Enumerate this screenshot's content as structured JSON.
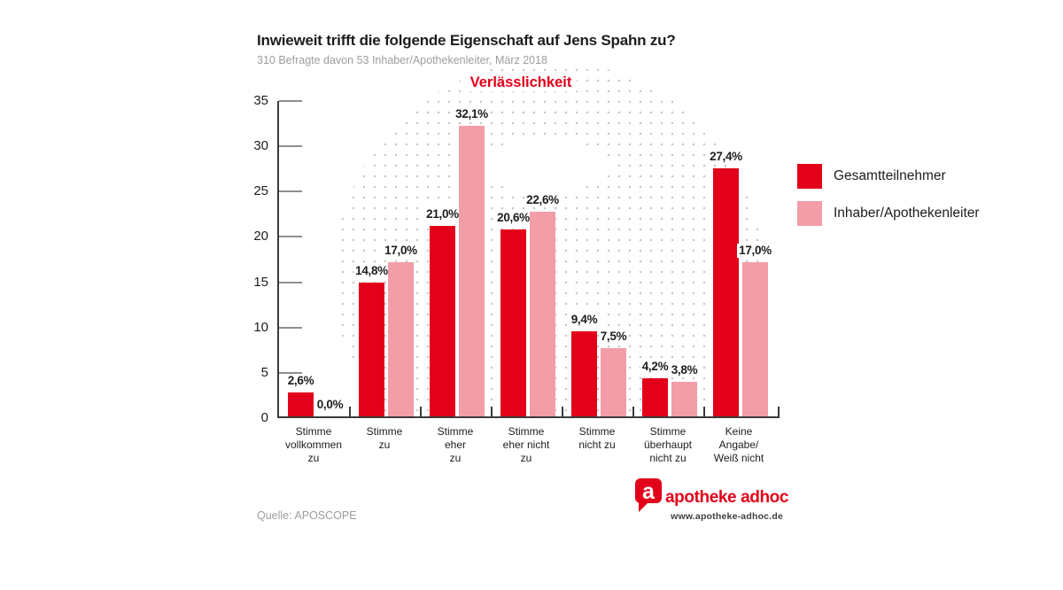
{
  "header": {
    "title": "Inwieweit trifft die folgende Eigenschaft auf Jens Spahn zu?",
    "subtitle": "310 Befragte davon 53 Inhaber/Apothekenleiter, März 2018",
    "attribute_label": "Verlässlichkeit"
  },
  "footer": {
    "source": "Quelle: APOSCOPE",
    "brand_name": "apotheke adhoc",
    "brand_url": "www.apotheke-adhoc.de",
    "logo_letter": "a"
  },
  "colors": {
    "series_primary": "#e2001a",
    "series_secondary": "#f29da8",
    "dots": "#c7c7c7",
    "axis": "#3a3a3a",
    "muted_text": "#9d9d9c",
    "label_text": "#1d1d1b"
  },
  "chart_data": {
    "type": "bar",
    "title": "Verlässlichkeit",
    "categories": [
      "Stimme vollkommen zu",
      "Stimme zu",
      "Stimme eher zu",
      "Stimme eher nicht zu",
      "Stimme nicht zu",
      "Stimme überhaupt nicht zu",
      "Keine Angabe/ Weiß nicht"
    ],
    "category_lines": [
      [
        "Stimme",
        "vollkommen",
        "zu"
      ],
      [
        "Stimme",
        "zu"
      ],
      [
        "Stimme",
        "eher",
        "zu"
      ],
      [
        "Stimme",
        "eher nicht",
        "zu"
      ],
      [
        "Stimme",
        "nicht zu"
      ],
      [
        "Stimme",
        "überhaupt",
        "nicht zu"
      ],
      [
        "Keine",
        "Angabe/",
        "Weiß nicht"
      ]
    ],
    "series": [
      {
        "name": "Gesamtteilnehmer",
        "color": "#e2001a",
        "values": [
          2.6,
          14.8,
          21.0,
          20.6,
          9.4,
          4.2,
          27.4
        ],
        "labels": [
          "2,6%",
          "14,8%",
          "21,0%",
          "20,6%",
          "9,4%",
          "4,2%",
          "27,4%"
        ]
      },
      {
        "name": "Inhaber/Apothekenleiter",
        "color": "#f29da8",
        "values": [
          0.0,
          17.0,
          32.1,
          22.6,
          7.5,
          3.8,
          17.0
        ],
        "labels": [
          "0,0%",
          "17,0%",
          "32,1%",
          "22,6%",
          "7,5%",
          "3,8%",
          "17,0%"
        ]
      }
    ],
    "ylabel": "",
    "xlabel": "",
    "ylim": [
      0,
      35
    ],
    "yticks": [
      0,
      5,
      10,
      15,
      20,
      25,
      30,
      35
    ],
    "grid": false,
    "legend_position": "right"
  }
}
